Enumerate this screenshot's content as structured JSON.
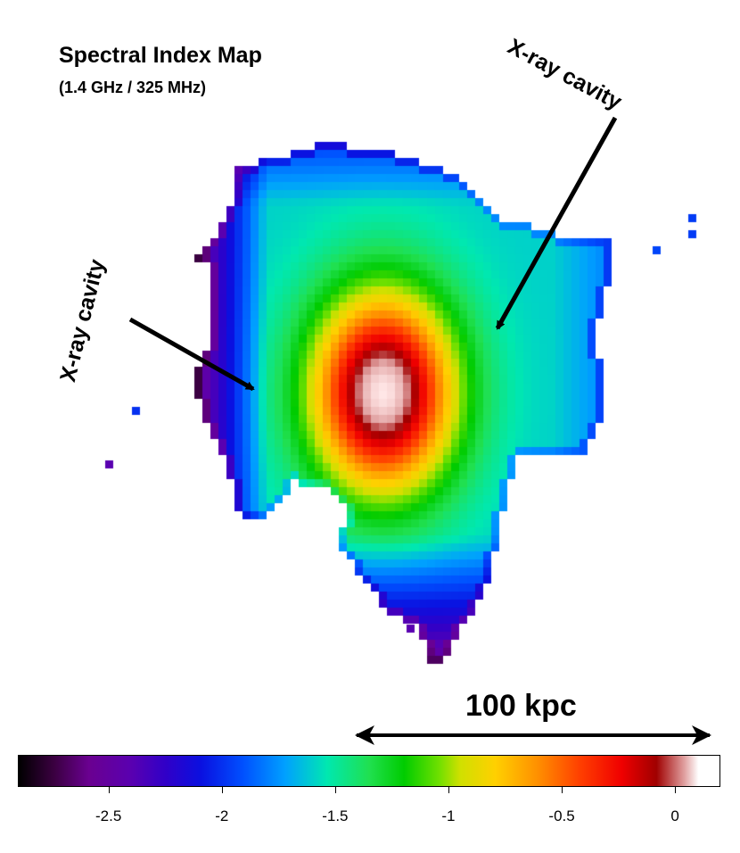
{
  "title": "Spectral Index Map",
  "subtitle": "(1.4 GHz / 325 MHz)",
  "annotations": {
    "cavity_right": "X-ray cavity",
    "cavity_left": "X-ray cavity"
  },
  "scale_bar": {
    "label": "100 kpc"
  },
  "colorbar": {
    "range": [
      -2.9,
      0.2
    ],
    "ticks": [
      {
        "value": -2.5,
        "label": "-2.5"
      },
      {
        "value": -2.0,
        "label": "-2"
      },
      {
        "value": -1.5,
        "label": "-1.5"
      },
      {
        "value": -1.0,
        "label": "-1"
      },
      {
        "value": -0.5,
        "label": "-0.5"
      },
      {
        "value": 0.0,
        "label": "0"
      }
    ],
    "colors": [
      "#000000",
      "#6a0090",
      "#0a10e0",
      "#00a0ff",
      "#00e8b0",
      "#00cc00",
      "#ffd000",
      "#ff4000",
      "#f00000",
      "#ffffff"
    ]
  }
}
